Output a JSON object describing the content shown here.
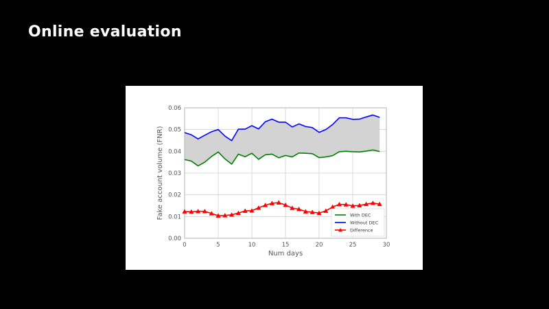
{
  "slide": {
    "title": "Online evaluation"
  },
  "chart_data": {
    "type": "line",
    "title": "",
    "xlabel": "Num days",
    "ylabel": "Fake account volume (FNR)",
    "xlim": [
      0,
      30
    ],
    "ylim": [
      0,
      0.06
    ],
    "xticks": [
      0,
      5,
      10,
      15,
      20,
      25,
      30
    ],
    "yticks": [
      0,
      0.01,
      0.02,
      0.03,
      0.04,
      0.05,
      0.06
    ],
    "xtick_labels": [
      "0",
      "5",
      "10",
      "15",
      "20",
      "25",
      "30"
    ],
    "ytick_labels": [
      "0.00",
      "0.01",
      "0.02",
      "0.03",
      "0.04",
      "0.05",
      "0.06"
    ],
    "grid": true,
    "legend_position": "lower-right",
    "fill_between": {
      "series": [
        "Without DEC",
        "With DEC"
      ],
      "color": "#d3d3d3"
    },
    "x": [
      0,
      1,
      2,
      3,
      4,
      5,
      6,
      7,
      8,
      9,
      10,
      11,
      12,
      13,
      14,
      15,
      16,
      17,
      18,
      19,
      20,
      21,
      22,
      23,
      24,
      25,
      26,
      27,
      28,
      29
    ],
    "series": [
      {
        "name": "With DEC",
        "color": "#008000",
        "marker": "none",
        "values": [
          0.0362,
          0.0355,
          0.0333,
          0.035,
          0.0376,
          0.0397,
          0.0365,
          0.0341,
          0.0387,
          0.0375,
          0.0391,
          0.0363,
          0.0384,
          0.0387,
          0.037,
          0.0381,
          0.0374,
          0.0392,
          0.0391,
          0.0389,
          0.0371,
          0.0374,
          0.038,
          0.0398,
          0.04,
          0.0398,
          0.0397,
          0.0401,
          0.0406,
          0.0399
        ]
      },
      {
        "name": "Without DEC",
        "color": "#0000ff",
        "marker": "none",
        "values": [
          0.0486,
          0.0476,
          0.0457,
          0.0474,
          0.049,
          0.05,
          0.047,
          0.0449,
          0.0502,
          0.0502,
          0.0518,
          0.0503,
          0.0536,
          0.0548,
          0.0534,
          0.0534,
          0.0512,
          0.0526,
          0.0514,
          0.0509,
          0.0487,
          0.05,
          0.0523,
          0.0554,
          0.0554,
          0.0547,
          0.0548,
          0.0558,
          0.0567,
          0.0556
        ]
      },
      {
        "name": "Difference",
        "color": "#ff0000",
        "marker": "triangle",
        "values": [
          0.0123,
          0.0122,
          0.0124,
          0.0124,
          0.0114,
          0.0104,
          0.0105,
          0.0108,
          0.0116,
          0.0126,
          0.0127,
          0.014,
          0.0152,
          0.0161,
          0.0164,
          0.0153,
          0.0139,
          0.0134,
          0.0123,
          0.012,
          0.0116,
          0.0126,
          0.0144,
          0.0156,
          0.0155,
          0.0149,
          0.0151,
          0.0157,
          0.0162,
          0.0157
        ]
      }
    ]
  }
}
